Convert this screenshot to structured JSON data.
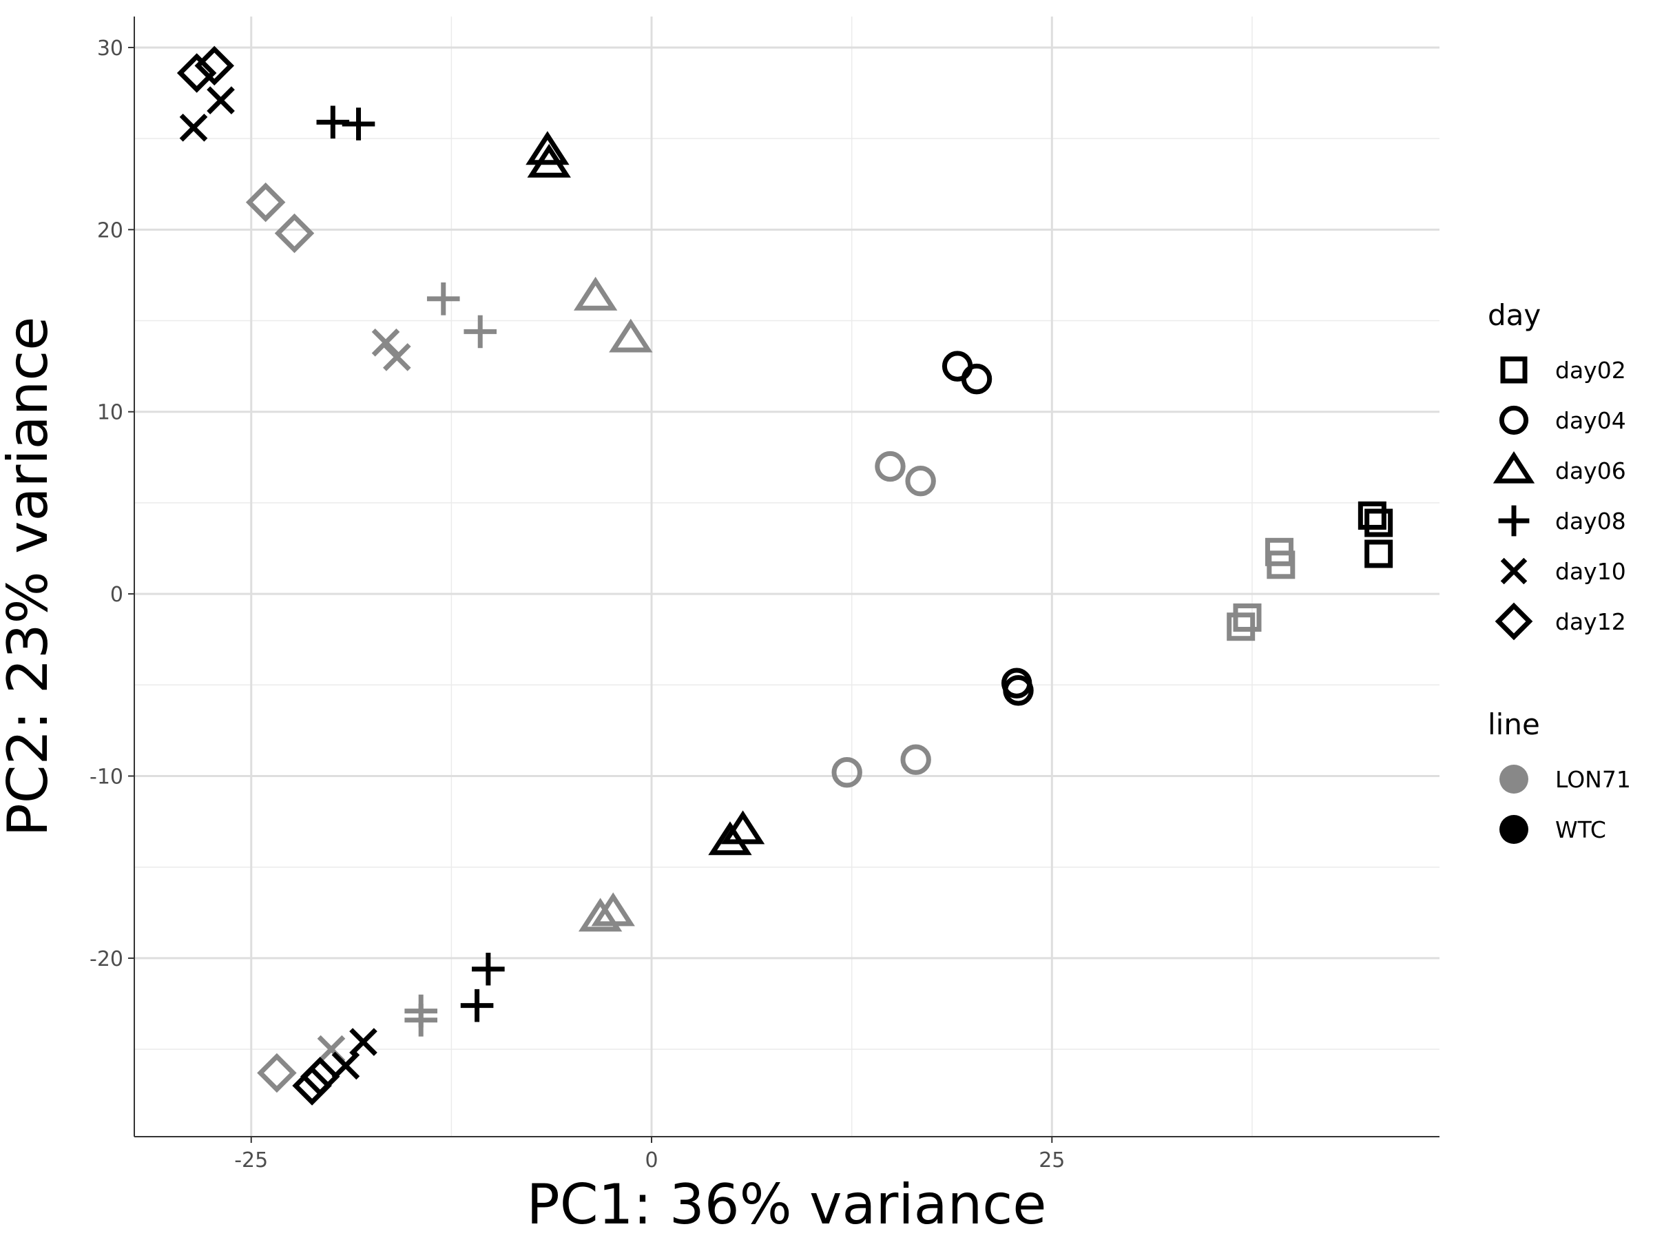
{
  "chart_data": {
    "type": "scatter",
    "xlabel": "PC1: 36% variance",
    "ylabel": "PC2: 23% variance",
    "xlim": [
      -32.3,
      49.2
    ],
    "ylim": [
      -29.8,
      31.7
    ],
    "x_ticks": [
      -25,
      0,
      25
    ],
    "y_ticks": [
      -20,
      -10,
      0,
      10,
      20,
      30
    ],
    "x_tick_labels": [
      "-25",
      "0",
      "25"
    ],
    "y_tick_labels": [
      "-20",
      "-10",
      "0",
      "10",
      "20",
      "30"
    ],
    "grid": true,
    "legend_position": "right",
    "legend": {
      "day": {
        "title": "day",
        "entries": [
          {
            "label": "day02",
            "shape": "square"
          },
          {
            "label": "day04",
            "shape": "circle"
          },
          {
            "label": "day06",
            "shape": "triangle"
          },
          {
            "label": "day08",
            "shape": "plus"
          },
          {
            "label": "day10",
            "shape": "cross"
          },
          {
            "label": "day12",
            "shape": "diamond"
          }
        ]
      },
      "line": {
        "title": "line",
        "entries": [
          {
            "label": "LON71",
            "color": "#888888"
          },
          {
            "label": "WTC",
            "color": "#000000"
          }
        ]
      }
    },
    "points": [
      {
        "day": "day12",
        "line": "WTC",
        "x": -28.4,
        "y": 28.6
      },
      {
        "day": "day12",
        "line": "WTC",
        "x": -27.3,
        "y": 29.0
      },
      {
        "day": "day10",
        "line": "WTC",
        "x": -28.6,
        "y": 25.6
      },
      {
        "day": "day10",
        "line": "WTC",
        "x": -26.9,
        "y": 27.1
      },
      {
        "day": "day08",
        "line": "WTC",
        "x": -19.9,
        "y": 25.9
      },
      {
        "day": "day08",
        "line": "WTC",
        "x": -18.3,
        "y": 25.8
      },
      {
        "day": "day06",
        "line": "WTC",
        "x": -6.5,
        "y": 24.3
      },
      {
        "day": "day06",
        "line": "WTC",
        "x": -6.4,
        "y": 23.6
      },
      {
        "day": "day12",
        "line": "LON71",
        "x": -24.1,
        "y": 21.5
      },
      {
        "day": "day12",
        "line": "LON71",
        "x": -22.3,
        "y": 19.8
      },
      {
        "day": "day08",
        "line": "LON71",
        "x": -13.0,
        "y": 16.2
      },
      {
        "day": "day08",
        "line": "LON71",
        "x": -10.7,
        "y": 14.4
      },
      {
        "day": "day10",
        "line": "LON71",
        "x": -16.6,
        "y": 13.8
      },
      {
        "day": "day10",
        "line": "LON71",
        "x": -15.9,
        "y": 13.0
      },
      {
        "day": "day06",
        "line": "LON71",
        "x": -3.5,
        "y": 16.3
      },
      {
        "day": "day06",
        "line": "LON71",
        "x": -1.3,
        "y": 14.0
      },
      {
        "day": "day04",
        "line": "WTC",
        "x": 19.1,
        "y": 12.5
      },
      {
        "day": "day04",
        "line": "WTC",
        "x": 20.3,
        "y": 11.8
      },
      {
        "day": "day04",
        "line": "LON71",
        "x": 14.9,
        "y": 7.0
      },
      {
        "day": "day04",
        "line": "LON71",
        "x": 16.8,
        "y": 6.2
      },
      {
        "day": "day02",
        "line": "WTC",
        "x": 45.0,
        "y": 4.3
      },
      {
        "day": "day02",
        "line": "WTC",
        "x": 45.4,
        "y": 3.9
      },
      {
        "day": "day02",
        "line": "WTC",
        "x": 45.4,
        "y": 2.2
      },
      {
        "day": "day02",
        "line": "LON71",
        "x": 39.2,
        "y": 2.3
      },
      {
        "day": "day02",
        "line": "LON71",
        "x": 39.3,
        "y": 1.6
      },
      {
        "day": "day02",
        "line": "LON71",
        "x": 37.2,
        "y": -1.3
      },
      {
        "day": "day02",
        "line": "LON71",
        "x": 36.8,
        "y": -1.8
      },
      {
        "day": "day04",
        "line": "WTC",
        "x": 22.8,
        "y": -4.9
      },
      {
        "day": "day04",
        "line": "WTC",
        "x": 22.9,
        "y": -5.3
      },
      {
        "day": "day04",
        "line": "LON71",
        "x": 12.2,
        "y": -9.8
      },
      {
        "day": "day04",
        "line": "LON71",
        "x": 16.5,
        "y": -9.1
      },
      {
        "day": "day06",
        "line": "WTC",
        "x": 4.9,
        "y": -13.6
      },
      {
        "day": "day06",
        "line": "WTC",
        "x": 5.7,
        "y": -13.0
      },
      {
        "day": "day06",
        "line": "LON71",
        "x": -3.2,
        "y": -17.8
      },
      {
        "day": "day06",
        "line": "LON71",
        "x": -2.4,
        "y": -17.5
      },
      {
        "day": "day08",
        "line": "WTC",
        "x": -10.2,
        "y": -20.6
      },
      {
        "day": "day08",
        "line": "WTC",
        "x": -10.9,
        "y": -22.6
      },
      {
        "day": "day08",
        "line": "LON71",
        "x": -14.4,
        "y": -22.9
      },
      {
        "day": "day08",
        "line": "LON71",
        "x": -14.4,
        "y": -23.4
      },
      {
        "day": "day10",
        "line": "WTC",
        "x": -18.0,
        "y": -24.6
      },
      {
        "day": "day10",
        "line": "WTC",
        "x": -19.1,
        "y": -25.9
      },
      {
        "day": "day10",
        "line": "LON71",
        "x": -20.0,
        "y": -25.0
      },
      {
        "day": "day12",
        "line": "LON71",
        "x": -23.4,
        "y": -26.3
      },
      {
        "day": "day12",
        "line": "WTC",
        "x": -20.7,
        "y": -26.5
      },
      {
        "day": "day12",
        "line": "WTC",
        "x": -21.2,
        "y": -27.0
      }
    ]
  }
}
